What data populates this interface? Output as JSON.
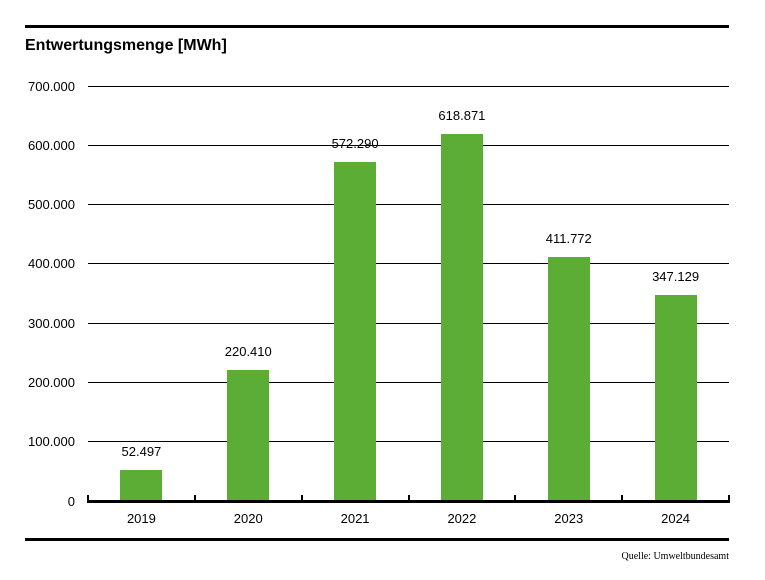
{
  "chart_data": {
    "type": "bar",
    "title": "Entwertungsmenge [MWh]",
    "categories": [
      "2019",
      "2020",
      "2021",
      "2022",
      "2023",
      "2024"
    ],
    "values": [
      52497,
      220410,
      572290,
      618871,
      411772,
      347129
    ],
    "value_labels": [
      "52.497",
      "220.410",
      "572.290",
      "618.871",
      "411.772",
      "347.129"
    ],
    "xlabel": "",
    "ylabel": "",
    "ylim": [
      0,
      700000
    ],
    "y_ticks": [
      0,
      100000,
      200000,
      300000,
      400000,
      500000,
      600000,
      700000
    ],
    "y_tick_labels": [
      "0",
      "100.000",
      "200.000",
      "300.000",
      "400.000",
      "500.000",
      "600.000",
      "700.000"
    ],
    "grid": true,
    "legend": false,
    "bar_color": "#5bad35",
    "text_color": "#000000"
  },
  "source": "Quelle: Umweltbundesamt"
}
